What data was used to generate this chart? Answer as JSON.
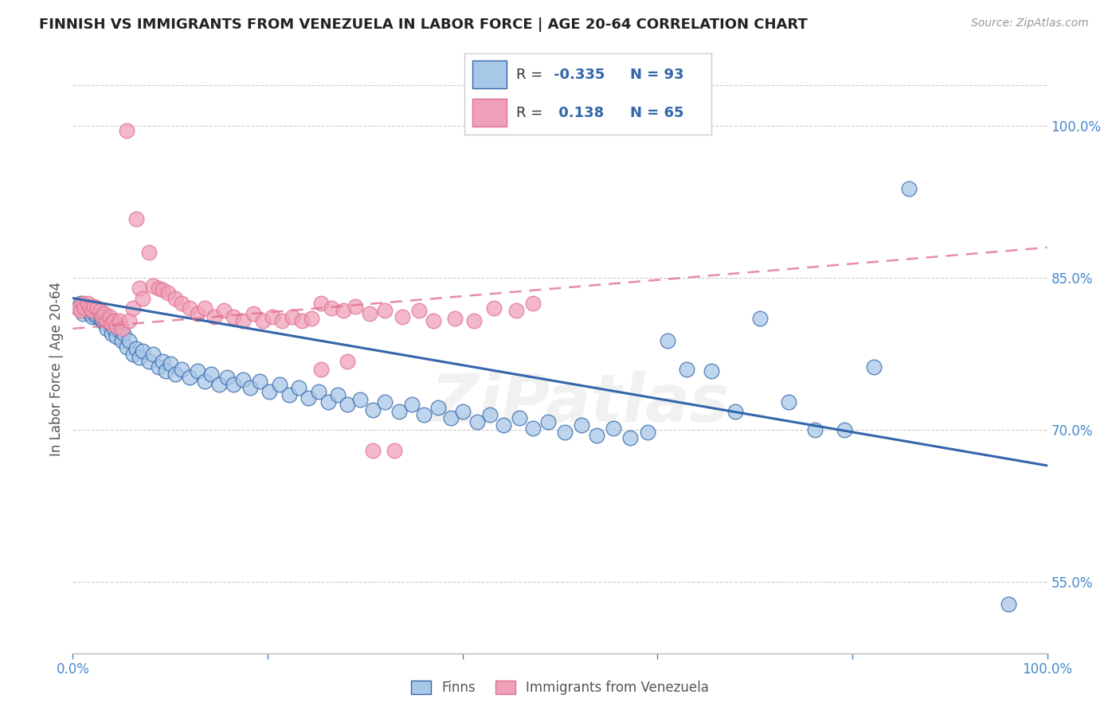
{
  "title": "FINNISH VS IMMIGRANTS FROM VENEZUELA IN LABOR FORCE | AGE 20-64 CORRELATION CHART",
  "source": "Source: ZipAtlas.com",
  "ylabel": "In Labor Force | Age 20-64",
  "x_min": 0.0,
  "x_max": 1.0,
  "y_min": 0.48,
  "y_max": 1.04,
  "y_tick_labels_right": [
    "100.0%",
    "85.0%",
    "70.0%",
    "55.0%"
  ],
  "y_tick_vals_right": [
    1.0,
    0.85,
    0.7,
    0.55
  ],
  "color_finns": "#A8C8E8",
  "color_venezuela": "#F0A0B8",
  "color_trend_finns": "#3366AA",
  "color_trend_venezuela": "#E07090",
  "background_color": "#FFFFFF",
  "watermark": "ZiPatlas",
  "finns_trend_x": [
    0.0,
    1.0
  ],
  "finns_trend_y": [
    0.83,
    0.665
  ],
  "venezuela_trend_x": [
    0.0,
    1.0
  ],
  "venezuela_trend_y": [
    0.8,
    0.88
  ],
  "finns_x": [
    0.005,
    0.008,
    0.01,
    0.012,
    0.015,
    0.015,
    0.018,
    0.018,
    0.02,
    0.02,
    0.022,
    0.022,
    0.025,
    0.025,
    0.028,
    0.028,
    0.03,
    0.03,
    0.032,
    0.032,
    0.035,
    0.038,
    0.04,
    0.042,
    0.045,
    0.048,
    0.05,
    0.052,
    0.055,
    0.058,
    0.062,
    0.065,
    0.068,
    0.072,
    0.078,
    0.082,
    0.088,
    0.092,
    0.095,
    0.1,
    0.105,
    0.112,
    0.12,
    0.128,
    0.135,
    0.142,
    0.15,
    0.158,
    0.165,
    0.175,
    0.182,
    0.192,
    0.202,
    0.212,
    0.222,
    0.232,
    0.242,
    0.252,
    0.262,
    0.272,
    0.282,
    0.295,
    0.308,
    0.32,
    0.335,
    0.348,
    0.36,
    0.375,
    0.388,
    0.4,
    0.415,
    0.428,
    0.442,
    0.458,
    0.472,
    0.488,
    0.505,
    0.522,
    0.538,
    0.555,
    0.572,
    0.59,
    0.61,
    0.63,
    0.655,
    0.68,
    0.705,
    0.735,
    0.762,
    0.792,
    0.822,
    0.858,
    0.96
  ],
  "finns_y": [
    0.82,
    0.825,
    0.815,
    0.82,
    0.818,
    0.822,
    0.815,
    0.82,
    0.812,
    0.818,
    0.815,
    0.82,
    0.812,
    0.818,
    0.81,
    0.815,
    0.808,
    0.812,
    0.805,
    0.81,
    0.8,
    0.805,
    0.795,
    0.8,
    0.792,
    0.798,
    0.788,
    0.795,
    0.782,
    0.788,
    0.775,
    0.78,
    0.772,
    0.778,
    0.768,
    0.775,
    0.762,
    0.768,
    0.758,
    0.765,
    0.755,
    0.76,
    0.752,
    0.758,
    0.748,
    0.755,
    0.745,
    0.752,
    0.745,
    0.75,
    0.742,
    0.748,
    0.738,
    0.745,
    0.735,
    0.742,
    0.732,
    0.738,
    0.728,
    0.735,
    0.725,
    0.73,
    0.72,
    0.728,
    0.718,
    0.725,
    0.715,
    0.722,
    0.712,
    0.718,
    0.708,
    0.715,
    0.705,
    0.712,
    0.702,
    0.708,
    0.698,
    0.705,
    0.695,
    0.702,
    0.692,
    0.698,
    0.788,
    0.76,
    0.758,
    0.718,
    0.81,
    0.728,
    0.7,
    0.7,
    0.762,
    0.938,
    0.528
  ],
  "venezuela_x": [
    0.005,
    0.008,
    0.01,
    0.012,
    0.015,
    0.018,
    0.02,
    0.022,
    0.025,
    0.028,
    0.03,
    0.032,
    0.035,
    0.038,
    0.04,
    0.042,
    0.045,
    0.048,
    0.05,
    0.055,
    0.058,
    0.062,
    0.065,
    0.068,
    0.072,
    0.078,
    0.082,
    0.088,
    0.092,
    0.098,
    0.105,
    0.112,
    0.12,
    0.128,
    0.135,
    0.145,
    0.155,
    0.165,
    0.175,
    0.185,
    0.195,
    0.205,
    0.215,
    0.225,
    0.235,
    0.245,
    0.255,
    0.265,
    0.278,
    0.29,
    0.305,
    0.32,
    0.338,
    0.355,
    0.37,
    0.392,
    0.412,
    0.432,
    0.455,
    0.472,
    0.255,
    0.282,
    0.308,
    0.33
  ],
  "venezuela_y": [
    0.82,
    0.818,
    0.825,
    0.82,
    0.825,
    0.82,
    0.818,
    0.822,
    0.82,
    0.818,
    0.812,
    0.815,
    0.808,
    0.812,
    0.805,
    0.808,
    0.802,
    0.808,
    0.8,
    0.995,
    0.808,
    0.82,
    0.908,
    0.84,
    0.83,
    0.875,
    0.842,
    0.84,
    0.838,
    0.835,
    0.83,
    0.825,
    0.82,
    0.815,
    0.82,
    0.812,
    0.818,
    0.812,
    0.808,
    0.815,
    0.808,
    0.812,
    0.808,
    0.812,
    0.808,
    0.81,
    0.825,
    0.82,
    0.818,
    0.822,
    0.815,
    0.818,
    0.812,
    0.818,
    0.808,
    0.81,
    0.808,
    0.82,
    0.818,
    0.825,
    0.76,
    0.768,
    0.68,
    0.68
  ]
}
